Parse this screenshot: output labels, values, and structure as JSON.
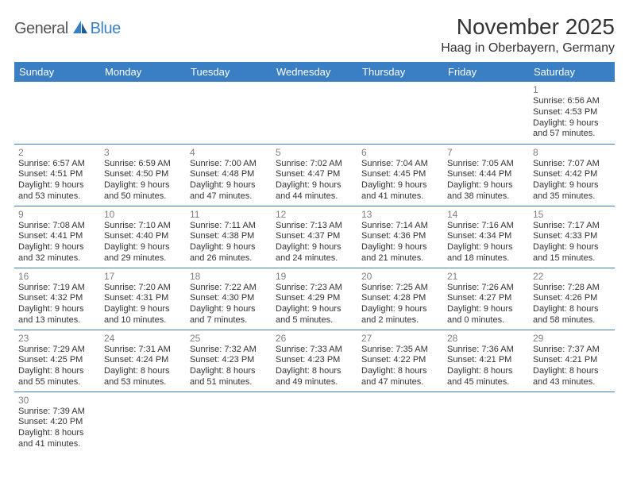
{
  "brand": {
    "general": "General",
    "blue": "Blue"
  },
  "title": "November 2025",
  "location": "Haag in Oberbayern, Germany",
  "weekday_labels": [
    "Sunday",
    "Monday",
    "Tuesday",
    "Wednesday",
    "Thursday",
    "Friday",
    "Saturday"
  ],
  "colors": {
    "header_bg": "#3a7fc4",
    "header_text": "#ffffff",
    "border": "#3a7fc4",
    "daynum": "#808080",
    "body_text": "#333333",
    "brand_gray": "#555555",
    "brand_blue": "#3a7fc4"
  },
  "first_weekday_index": 6,
  "days": [
    {
      "n": 1,
      "sunrise": "6:56 AM",
      "sunset": "4:53 PM",
      "daylight": "9 hours and 57 minutes."
    },
    {
      "n": 2,
      "sunrise": "6:57 AM",
      "sunset": "4:51 PM",
      "daylight": "9 hours and 53 minutes."
    },
    {
      "n": 3,
      "sunrise": "6:59 AM",
      "sunset": "4:50 PM",
      "daylight": "9 hours and 50 minutes."
    },
    {
      "n": 4,
      "sunrise": "7:00 AM",
      "sunset": "4:48 PM",
      "daylight": "9 hours and 47 minutes."
    },
    {
      "n": 5,
      "sunrise": "7:02 AM",
      "sunset": "4:47 PM",
      "daylight": "9 hours and 44 minutes."
    },
    {
      "n": 6,
      "sunrise": "7:04 AM",
      "sunset": "4:45 PM",
      "daylight": "9 hours and 41 minutes."
    },
    {
      "n": 7,
      "sunrise": "7:05 AM",
      "sunset": "4:44 PM",
      "daylight": "9 hours and 38 minutes."
    },
    {
      "n": 8,
      "sunrise": "7:07 AM",
      "sunset": "4:42 PM",
      "daylight": "9 hours and 35 minutes."
    },
    {
      "n": 9,
      "sunrise": "7:08 AM",
      "sunset": "4:41 PM",
      "daylight": "9 hours and 32 minutes."
    },
    {
      "n": 10,
      "sunrise": "7:10 AM",
      "sunset": "4:40 PM",
      "daylight": "9 hours and 29 minutes."
    },
    {
      "n": 11,
      "sunrise": "7:11 AM",
      "sunset": "4:38 PM",
      "daylight": "9 hours and 26 minutes."
    },
    {
      "n": 12,
      "sunrise": "7:13 AM",
      "sunset": "4:37 PM",
      "daylight": "9 hours and 24 minutes."
    },
    {
      "n": 13,
      "sunrise": "7:14 AM",
      "sunset": "4:36 PM",
      "daylight": "9 hours and 21 minutes."
    },
    {
      "n": 14,
      "sunrise": "7:16 AM",
      "sunset": "4:34 PM",
      "daylight": "9 hours and 18 minutes."
    },
    {
      "n": 15,
      "sunrise": "7:17 AM",
      "sunset": "4:33 PM",
      "daylight": "9 hours and 15 minutes."
    },
    {
      "n": 16,
      "sunrise": "7:19 AM",
      "sunset": "4:32 PM",
      "daylight": "9 hours and 13 minutes."
    },
    {
      "n": 17,
      "sunrise": "7:20 AM",
      "sunset": "4:31 PM",
      "daylight": "9 hours and 10 minutes."
    },
    {
      "n": 18,
      "sunrise": "7:22 AM",
      "sunset": "4:30 PM",
      "daylight": "9 hours and 7 minutes."
    },
    {
      "n": 19,
      "sunrise": "7:23 AM",
      "sunset": "4:29 PM",
      "daylight": "9 hours and 5 minutes."
    },
    {
      "n": 20,
      "sunrise": "7:25 AM",
      "sunset": "4:28 PM",
      "daylight": "9 hours and 2 minutes."
    },
    {
      "n": 21,
      "sunrise": "7:26 AM",
      "sunset": "4:27 PM",
      "daylight": "9 hours and 0 minutes."
    },
    {
      "n": 22,
      "sunrise": "7:28 AM",
      "sunset": "4:26 PM",
      "daylight": "8 hours and 58 minutes."
    },
    {
      "n": 23,
      "sunrise": "7:29 AM",
      "sunset": "4:25 PM",
      "daylight": "8 hours and 55 minutes."
    },
    {
      "n": 24,
      "sunrise": "7:31 AM",
      "sunset": "4:24 PM",
      "daylight": "8 hours and 53 minutes."
    },
    {
      "n": 25,
      "sunrise": "7:32 AM",
      "sunset": "4:23 PM",
      "daylight": "8 hours and 51 minutes."
    },
    {
      "n": 26,
      "sunrise": "7:33 AM",
      "sunset": "4:23 PM",
      "daylight": "8 hours and 49 minutes."
    },
    {
      "n": 27,
      "sunrise": "7:35 AM",
      "sunset": "4:22 PM",
      "daylight": "8 hours and 47 minutes."
    },
    {
      "n": 28,
      "sunrise": "7:36 AM",
      "sunset": "4:21 PM",
      "daylight": "8 hours and 45 minutes."
    },
    {
      "n": 29,
      "sunrise": "7:37 AM",
      "sunset": "4:21 PM",
      "daylight": "8 hours and 43 minutes."
    },
    {
      "n": 30,
      "sunrise": "7:39 AM",
      "sunset": "4:20 PM",
      "daylight": "8 hours and 41 minutes."
    }
  ],
  "labels": {
    "sunrise": "Sunrise:",
    "sunset": "Sunset:",
    "daylight": "Daylight:"
  }
}
